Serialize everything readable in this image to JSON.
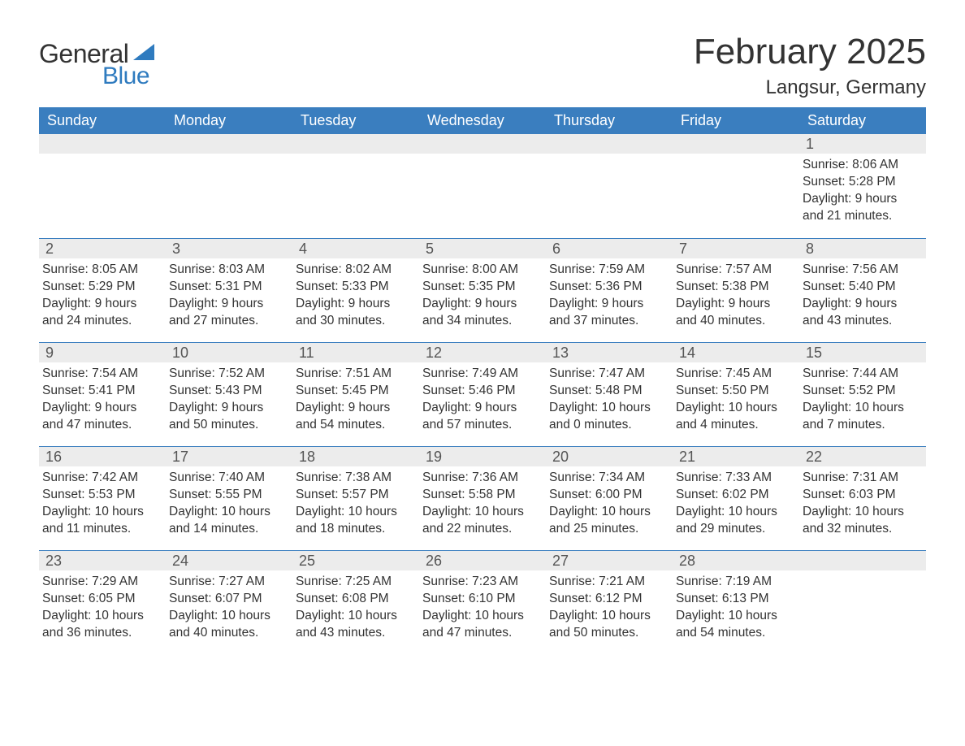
{
  "logo": {
    "text_general": "General",
    "text_blue": "Blue",
    "general_color": "#333333",
    "blue_color": "#2f7bbf",
    "sail_color": "#2f7bbf"
  },
  "header": {
    "month_title": "February 2025",
    "location": "Langsur, Germany",
    "title_fontsize": 44,
    "location_fontsize": 24,
    "title_color": "#333333"
  },
  "calendar": {
    "weekday_header_bg": "#3a7ebf",
    "weekday_header_text_color": "#ffffff",
    "week_divider_color": "#3a7ebf",
    "daynum_bar_bg": "#ececec",
    "body_text_color": "#333333",
    "body_fontsize": 15.5,
    "weekdays": [
      "Sunday",
      "Monday",
      "Tuesday",
      "Wednesday",
      "Thursday",
      "Friday",
      "Saturday"
    ],
    "weeks": [
      [
        {
          "day": "",
          "sunrise": "",
          "sunset": "",
          "daylight": ""
        },
        {
          "day": "",
          "sunrise": "",
          "sunset": "",
          "daylight": ""
        },
        {
          "day": "",
          "sunrise": "",
          "sunset": "",
          "daylight": ""
        },
        {
          "day": "",
          "sunrise": "",
          "sunset": "",
          "daylight": ""
        },
        {
          "day": "",
          "sunrise": "",
          "sunset": "",
          "daylight": ""
        },
        {
          "day": "",
          "sunrise": "",
          "sunset": "",
          "daylight": ""
        },
        {
          "day": "1",
          "sunrise": "Sunrise: 8:06 AM",
          "sunset": "Sunset: 5:28 PM",
          "daylight": "Daylight: 9 hours and 21 minutes."
        }
      ],
      [
        {
          "day": "2",
          "sunrise": "Sunrise: 8:05 AM",
          "sunset": "Sunset: 5:29 PM",
          "daylight": "Daylight: 9 hours and 24 minutes."
        },
        {
          "day": "3",
          "sunrise": "Sunrise: 8:03 AM",
          "sunset": "Sunset: 5:31 PM",
          "daylight": "Daylight: 9 hours and 27 minutes."
        },
        {
          "day": "4",
          "sunrise": "Sunrise: 8:02 AM",
          "sunset": "Sunset: 5:33 PM",
          "daylight": "Daylight: 9 hours and 30 minutes."
        },
        {
          "day": "5",
          "sunrise": "Sunrise: 8:00 AM",
          "sunset": "Sunset: 5:35 PM",
          "daylight": "Daylight: 9 hours and 34 minutes."
        },
        {
          "day": "6",
          "sunrise": "Sunrise: 7:59 AM",
          "sunset": "Sunset: 5:36 PM",
          "daylight": "Daylight: 9 hours and 37 minutes."
        },
        {
          "day": "7",
          "sunrise": "Sunrise: 7:57 AM",
          "sunset": "Sunset: 5:38 PM",
          "daylight": "Daylight: 9 hours and 40 minutes."
        },
        {
          "day": "8",
          "sunrise": "Sunrise: 7:56 AM",
          "sunset": "Sunset: 5:40 PM",
          "daylight": "Daylight: 9 hours and 43 minutes."
        }
      ],
      [
        {
          "day": "9",
          "sunrise": "Sunrise: 7:54 AM",
          "sunset": "Sunset: 5:41 PM",
          "daylight": "Daylight: 9 hours and 47 minutes."
        },
        {
          "day": "10",
          "sunrise": "Sunrise: 7:52 AM",
          "sunset": "Sunset: 5:43 PM",
          "daylight": "Daylight: 9 hours and 50 minutes."
        },
        {
          "day": "11",
          "sunrise": "Sunrise: 7:51 AM",
          "sunset": "Sunset: 5:45 PM",
          "daylight": "Daylight: 9 hours and 54 minutes."
        },
        {
          "day": "12",
          "sunrise": "Sunrise: 7:49 AM",
          "sunset": "Sunset: 5:46 PM",
          "daylight": "Daylight: 9 hours and 57 minutes."
        },
        {
          "day": "13",
          "sunrise": "Sunrise: 7:47 AM",
          "sunset": "Sunset: 5:48 PM",
          "daylight": "Daylight: 10 hours and 0 minutes."
        },
        {
          "day": "14",
          "sunrise": "Sunrise: 7:45 AM",
          "sunset": "Sunset: 5:50 PM",
          "daylight": "Daylight: 10 hours and 4 minutes."
        },
        {
          "day": "15",
          "sunrise": "Sunrise: 7:44 AM",
          "sunset": "Sunset: 5:52 PM",
          "daylight": "Daylight: 10 hours and 7 minutes."
        }
      ],
      [
        {
          "day": "16",
          "sunrise": "Sunrise: 7:42 AM",
          "sunset": "Sunset: 5:53 PM",
          "daylight": "Daylight: 10 hours and 11 minutes."
        },
        {
          "day": "17",
          "sunrise": "Sunrise: 7:40 AM",
          "sunset": "Sunset: 5:55 PM",
          "daylight": "Daylight: 10 hours and 14 minutes."
        },
        {
          "day": "18",
          "sunrise": "Sunrise: 7:38 AM",
          "sunset": "Sunset: 5:57 PM",
          "daylight": "Daylight: 10 hours and 18 minutes."
        },
        {
          "day": "19",
          "sunrise": "Sunrise: 7:36 AM",
          "sunset": "Sunset: 5:58 PM",
          "daylight": "Daylight: 10 hours and 22 minutes."
        },
        {
          "day": "20",
          "sunrise": "Sunrise: 7:34 AM",
          "sunset": "Sunset: 6:00 PM",
          "daylight": "Daylight: 10 hours and 25 minutes."
        },
        {
          "day": "21",
          "sunrise": "Sunrise: 7:33 AM",
          "sunset": "Sunset: 6:02 PM",
          "daylight": "Daylight: 10 hours and 29 minutes."
        },
        {
          "day": "22",
          "sunrise": "Sunrise: 7:31 AM",
          "sunset": "Sunset: 6:03 PM",
          "daylight": "Daylight: 10 hours and 32 minutes."
        }
      ],
      [
        {
          "day": "23",
          "sunrise": "Sunrise: 7:29 AM",
          "sunset": "Sunset: 6:05 PM",
          "daylight": "Daylight: 10 hours and 36 minutes."
        },
        {
          "day": "24",
          "sunrise": "Sunrise: 7:27 AM",
          "sunset": "Sunset: 6:07 PM",
          "daylight": "Daylight: 10 hours and 40 minutes."
        },
        {
          "day": "25",
          "sunrise": "Sunrise: 7:25 AM",
          "sunset": "Sunset: 6:08 PM",
          "daylight": "Daylight: 10 hours and 43 minutes."
        },
        {
          "day": "26",
          "sunrise": "Sunrise: 7:23 AM",
          "sunset": "Sunset: 6:10 PM",
          "daylight": "Daylight: 10 hours and 47 minutes."
        },
        {
          "day": "27",
          "sunrise": "Sunrise: 7:21 AM",
          "sunset": "Sunset: 6:12 PM",
          "daylight": "Daylight: 10 hours and 50 minutes."
        },
        {
          "day": "28",
          "sunrise": "Sunrise: 7:19 AM",
          "sunset": "Sunset: 6:13 PM",
          "daylight": "Daylight: 10 hours and 54 minutes."
        },
        {
          "day": "",
          "sunrise": "",
          "sunset": "",
          "daylight": ""
        }
      ]
    ]
  }
}
